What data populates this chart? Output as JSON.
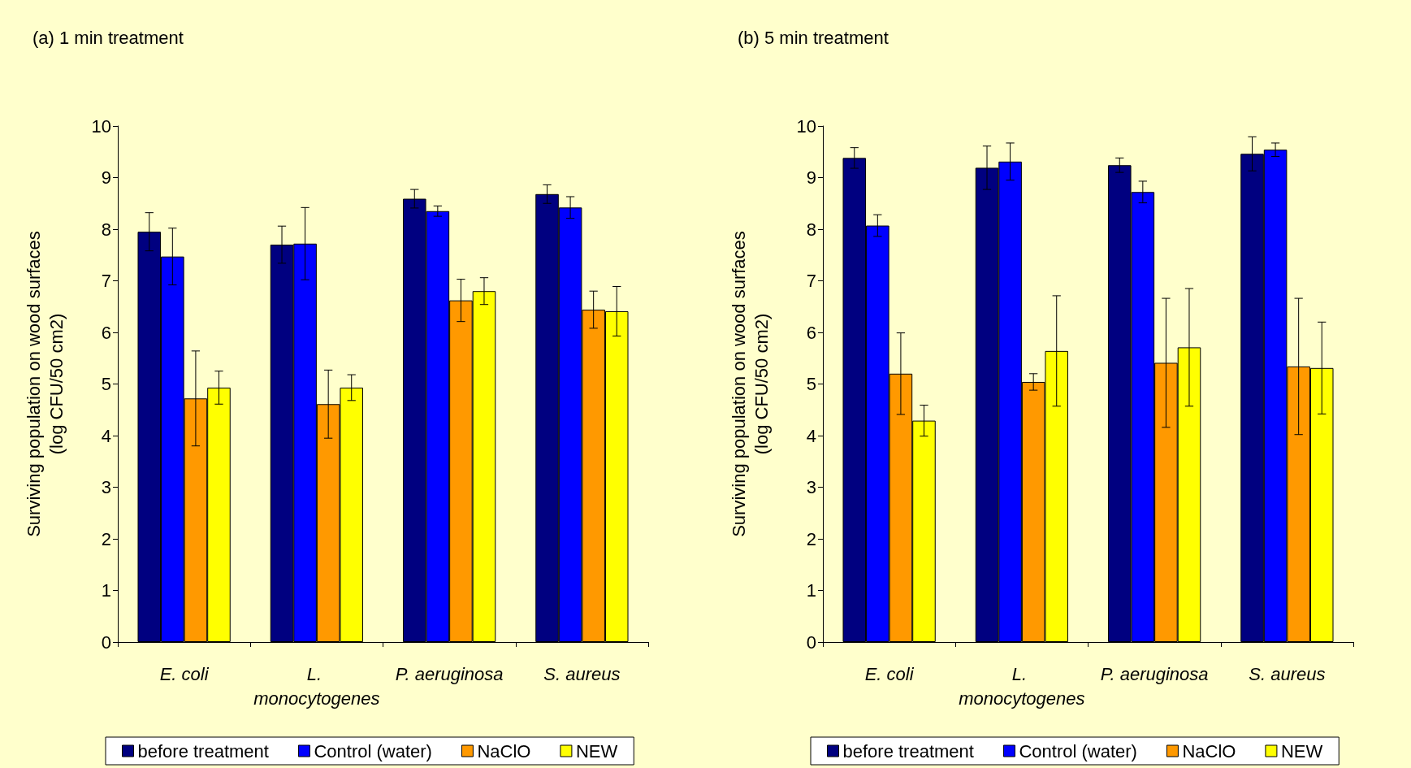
{
  "chart_data": [
    {
      "type": "bar",
      "title": "(a) 1 min treatment",
      "ylabel": "Surviving population on wood surfaces\n(log CFU/50 cm2)",
      "categories": [
        "E. coli",
        "L. monocytogenes",
        "P. aeruginosa",
        "S. aureus"
      ],
      "ylim": [
        0,
        10
      ],
      "yticks": [
        0,
        1,
        2,
        3,
        4,
        5,
        6,
        7,
        8,
        9,
        10
      ],
      "grid": false,
      "legend": "bottom",
      "series": [
        {
          "name": "before treatment",
          "color": "#000080",
          "values": [
            7.95,
            7.7,
            8.59,
            8.68
          ],
          "errors": [
            0.37,
            0.36,
            0.18,
            0.18
          ]
        },
        {
          "name": "Control (water)",
          "color": "#0000ff",
          "values": [
            7.47,
            7.72,
            8.35,
            8.42
          ],
          "errors": [
            0.55,
            0.7,
            0.1,
            0.21
          ]
        },
        {
          "name": "NaClO",
          "color": "#ff9900",
          "values": [
            4.72,
            4.61,
            6.62,
            6.44
          ],
          "errors": [
            0.92,
            0.66,
            0.41,
            0.36
          ]
        },
        {
          "name": "NEW",
          "color": "#ffff00",
          "values": [
            4.93,
            4.93,
            6.8,
            6.41
          ],
          "errors": [
            0.32,
            0.25,
            0.26,
            0.48
          ]
        }
      ]
    },
    {
      "type": "bar",
      "title": "(b) 5 min treatment",
      "ylabel": "Surviving population on wood surfaces\n(log CFU/50 cm2)",
      "categories": [
        "E. coli",
        "L. monocytogenes",
        "P. aeruginosa",
        "S. aureus"
      ],
      "ylim": [
        0,
        10
      ],
      "yticks": [
        0,
        1,
        2,
        3,
        4,
        5,
        6,
        7,
        8,
        9,
        10
      ],
      "grid": false,
      "legend": "bottom",
      "series": [
        {
          "name": "before treatment",
          "color": "#000080",
          "values": [
            9.38,
            9.19,
            9.24,
            9.46
          ],
          "errors": [
            0.2,
            0.42,
            0.14,
            0.33
          ]
        },
        {
          "name": "Control (water)",
          "color": "#0000ff",
          "values": [
            8.07,
            9.31,
            8.72,
            9.54
          ],
          "errors": [
            0.21,
            0.36,
            0.21,
            0.13
          ]
        },
        {
          "name": "NaClO",
          "color": "#ff9900",
          "values": [
            5.2,
            5.04,
            5.41,
            5.34
          ],
          "errors": [
            0.79,
            0.16,
            1.25,
            1.32
          ]
        },
        {
          "name": "NEW",
          "color": "#ffff00",
          "values": [
            4.29,
            5.64,
            5.71,
            5.31
          ],
          "errors": [
            0.3,
            1.07,
            1.14,
            0.89
          ]
        }
      ]
    }
  ]
}
